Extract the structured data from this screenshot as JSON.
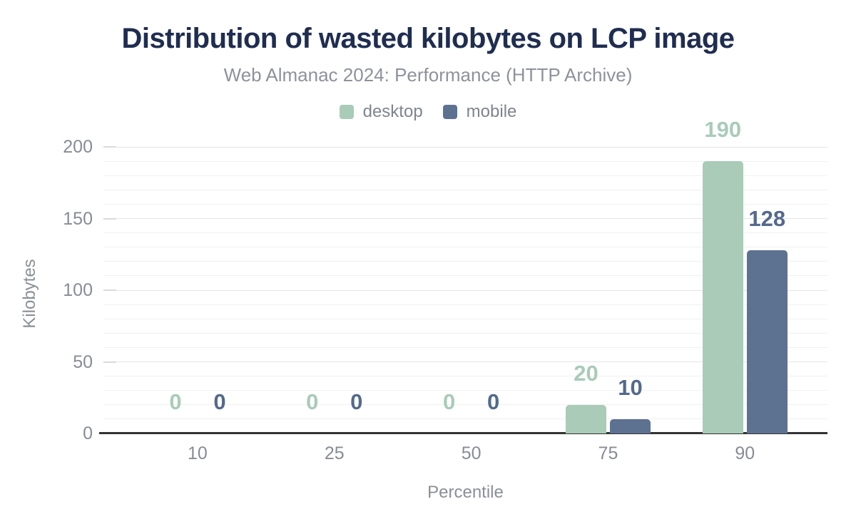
{
  "chart": {
    "title": "Distribution of wasted kilobytes on LCP image",
    "subtitle": "Web Almanac 2024: Performance (HTTP Archive)"
  },
  "chart_data": {
    "type": "bar",
    "title": "Distribution of wasted kilobytes on LCP image",
    "subtitle": "Web Almanac 2024: Performance (HTTP Archive)",
    "categories": [
      "10",
      "25",
      "50",
      "75",
      "90"
    ],
    "series": [
      {
        "name": "desktop",
        "color": "#a9cbb8",
        "label_color": "#a9cbb8",
        "values": [
          0,
          0,
          0,
          20,
          190
        ]
      },
      {
        "name": "mobile",
        "color": "#5d7191",
        "label_color": "#54698c",
        "values": [
          0,
          0,
          0,
          10,
          128
        ]
      }
    ],
    "xlabel": "Percentile",
    "ylabel": "Kilobytes",
    "ylim": [
      0,
      200
    ],
    "yticks": [
      0,
      50,
      100,
      150,
      200
    ],
    "minor_grid_step": 10,
    "grid": true,
    "legend_position": "top",
    "value_labels": true,
    "colors": {
      "title": "#1f2d50",
      "subtitle": "#8d929b",
      "axis_text": "#878c94",
      "axis_line": "#333333",
      "grid_minor": "#f1f1f1",
      "grid_major": "#e5e5e5"
    }
  }
}
